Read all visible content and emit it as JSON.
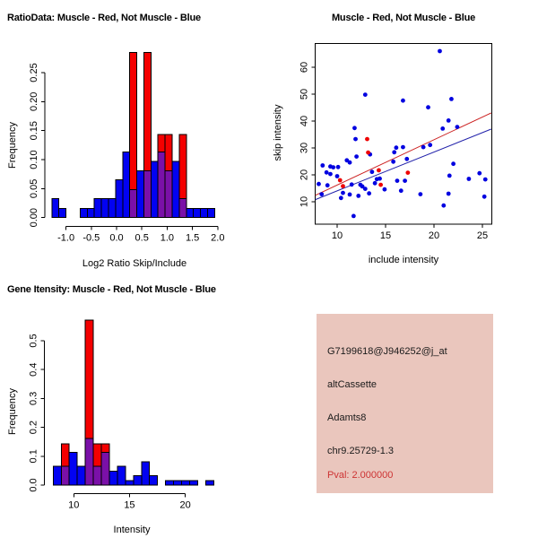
{
  "chart_data": [
    {
      "id": "ratio_histogram",
      "type": "bar",
      "title": "RatioData: Muscle - Red, Not Muscle - Blue",
      "xlabel": "Log2 Ratio Skip/Include",
      "ylabel": "Frequency",
      "x_ticks": [
        -1.0,
        -0.5,
        0.0,
        0.5,
        1.0,
        1.5,
        2.0
      ],
      "x_tick_labels": [
        "-1.0",
        "-0.5",
        "0.0",
        "0.5",
        "1.0",
        "1.5",
        "2.0"
      ],
      "y_ticks": [
        0.0,
        0.05,
        0.1,
        0.15,
        0.2,
        0.25
      ],
      "y_tick_labels": [
        "0.00",
        "0.05",
        "0.10",
        "0.15",
        "0.20",
        "0.25"
      ],
      "xlim": [
        -1.35,
        2.05
      ],
      "ylim": [
        0,
        0.285
      ],
      "bin_width": 0.14,
      "legend_note": "red = Muscle, blue = Not Muscle, purple = overlap",
      "bins": [
        {
          "x0": -1.28,
          "blue": 0.033,
          "red": 0
        },
        {
          "x0": -1.14,
          "blue": 0.016,
          "red": 0
        },
        {
          "x0": -1.0,
          "blue": 0,
          "red": 0
        },
        {
          "x0": -0.86,
          "blue": 0,
          "red": 0
        },
        {
          "x0": -0.72,
          "blue": 0.016,
          "red": 0
        },
        {
          "x0": -0.58,
          "blue": 0.016,
          "red": 0
        },
        {
          "x0": -0.44,
          "blue": 0.033,
          "red": 0
        },
        {
          "x0": -0.3,
          "blue": 0.033,
          "red": 0
        },
        {
          "x0": -0.16,
          "blue": 0.033,
          "red": 0
        },
        {
          "x0": -0.02,
          "blue": 0.065,
          "red": 0
        },
        {
          "x0": 0.12,
          "blue": 0.113,
          "red": 0
        },
        {
          "x0": 0.26,
          "blue": 0.048,
          "red": 0.285
        },
        {
          "x0": 0.4,
          "blue": 0.081,
          "red": 0
        },
        {
          "x0": 0.54,
          "blue": 0.081,
          "red": 0.285
        },
        {
          "x0": 0.68,
          "blue": 0.097,
          "red": 0
        },
        {
          "x0": 0.82,
          "blue": 0.113,
          "red": 0.143
        },
        {
          "x0": 0.96,
          "blue": 0.081,
          "red": 0.143
        },
        {
          "x0": 1.1,
          "blue": 0.097,
          "red": 0
        },
        {
          "x0": 1.24,
          "blue": 0.033,
          "red": 0.143
        },
        {
          "x0": 1.38,
          "blue": 0.016,
          "red": 0
        },
        {
          "x0": 1.52,
          "blue": 0.016,
          "red": 0
        },
        {
          "x0": 1.66,
          "blue": 0.016,
          "red": 0
        },
        {
          "x0": 1.8,
          "blue": 0.016,
          "red": 0
        }
      ]
    },
    {
      "id": "intensity_scatter",
      "type": "scatter",
      "title": "Muscle - Red, Not Muscle - Blue",
      "xlabel": "include intensity",
      "ylabel": "skip intensity",
      "x_ticks": [
        10,
        15,
        20,
        25
      ],
      "x_tick_labels": [
        "10",
        "15",
        "20",
        "25"
      ],
      "y_ticks": [
        10,
        20,
        30,
        40,
        50,
        60
      ],
      "y_tick_labels": [
        "10",
        "20",
        "30",
        "40",
        "50",
        "60"
      ],
      "xlim": [
        7.75,
        25.9
      ],
      "ylim": [
        1.7,
        68.9
      ],
      "blue_points": [
        [
          8.1,
          16.6
        ],
        [
          8.5,
          23.5
        ],
        [
          8.4,
          12.8
        ],
        [
          9.0,
          16.1
        ],
        [
          9.3,
          23.1
        ],
        [
          9.6,
          22.8
        ],
        [
          8.9,
          20.9
        ],
        [
          9.3,
          20.3
        ],
        [
          10.0,
          19.5
        ],
        [
          10.1,
          22.9
        ],
        [
          10.4,
          11.4
        ],
        [
          10.6,
          13.3
        ],
        [
          11.0,
          25.4
        ],
        [
          11.3,
          24.6
        ],
        [
          11.3,
          12.7
        ],
        [
          11.5,
          16.4
        ],
        [
          11.7,
          4.7
        ],
        [
          11.8,
          37.4
        ],
        [
          11.9,
          33.3
        ],
        [
          12.0,
          26.8
        ],
        [
          12.2,
          12.2
        ],
        [
          12.4,
          16.3
        ],
        [
          12.6,
          15.7
        ],
        [
          12.9,
          14.8
        ],
        [
          12.9,
          49.8
        ],
        [
          13.4,
          27.6
        ],
        [
          13.3,
          13.1
        ],
        [
          13.6,
          21.1
        ],
        [
          13.9,
          16.9
        ],
        [
          14.1,
          18.4
        ],
        [
          14.4,
          18.6
        ],
        [
          14.9,
          14.6
        ],
        [
          15.8,
          24.9
        ],
        [
          15.9,
          28.4
        ],
        [
          16.1,
          30.1
        ],
        [
          16.8,
          30.3
        ],
        [
          16.2,
          17.8
        ],
        [
          16.6,
          14.1
        ],
        [
          16.8,
          47.6
        ],
        [
          17.0,
          17.8
        ],
        [
          17.2,
          25.9
        ],
        [
          18.6,
          12.8
        ],
        [
          18.9,
          30.3
        ],
        [
          19.4,
          45.1
        ],
        [
          19.6,
          31.1
        ],
        [
          20.6,
          66.0
        ],
        [
          20.9,
          37.2
        ],
        [
          21.0,
          8.6
        ],
        [
          21.5,
          13.0
        ],
        [
          21.5,
          40.2
        ],
        [
          21.6,
          19.7
        ],
        [
          21.8,
          48.2
        ],
        [
          22.0,
          24.1
        ],
        [
          22.4,
          37.8
        ],
        [
          23.6,
          18.5
        ],
        [
          24.7,
          20.6
        ],
        [
          25.2,
          11.9
        ],
        [
          25.3,
          18.3
        ]
      ],
      "red_points": [
        [
          10.3,
          18.0
        ],
        [
          10.6,
          15.8
        ],
        [
          13.1,
          33.3
        ],
        [
          13.2,
          28.3
        ],
        [
          14.3,
          21.7
        ],
        [
          14.5,
          16.3
        ],
        [
          17.3,
          20.8
        ]
      ],
      "red_line": {
        "x1": 7.75,
        "y1": 12.4,
        "x2": 25.9,
        "y2": 43.0
      },
      "blue_line": {
        "x1": 7.75,
        "y1": 10.8,
        "x2": 25.9,
        "y2": 37.0
      }
    },
    {
      "id": "gene_intensity_histogram",
      "type": "bar",
      "title": "Gene Itensity: Muscle - Red, Not Muscle - Blue",
      "xlabel": "Intensity",
      "ylabel": "Frequency",
      "x_ticks": [
        10,
        15,
        20
      ],
      "x_tick_labels": [
        "10",
        "15",
        "20"
      ],
      "y_ticks": [
        0.0,
        0.1,
        0.2,
        0.3,
        0.4,
        0.5
      ],
      "y_tick_labels": [
        "0.0",
        "0.1",
        "0.2",
        "0.3",
        "0.4",
        "0.5"
      ],
      "xlim": [
        7.9,
        22.8
      ],
      "ylim": [
        0,
        0.575
      ],
      "bin_width": 0.72,
      "legend_note": "red = Muscle, blue = Not Muscle, purple = overlap",
      "bins": [
        {
          "x0": 8.15,
          "blue": 0.065,
          "red": 0
        },
        {
          "x0": 8.87,
          "blue": 0.065,
          "red": 0.143
        },
        {
          "x0": 9.59,
          "blue": 0.113,
          "red": 0
        },
        {
          "x0": 10.31,
          "blue": 0.065,
          "red": 0
        },
        {
          "x0": 11.03,
          "blue": 0.161,
          "red": 0.571
        },
        {
          "x0": 11.75,
          "blue": 0.065,
          "red": 0.143
        },
        {
          "x0": 12.47,
          "blue": 0.113,
          "red": 0.143
        },
        {
          "x0": 13.19,
          "blue": 0.048,
          "red": 0
        },
        {
          "x0": 13.91,
          "blue": 0.065,
          "red": 0
        },
        {
          "x0": 14.63,
          "blue": 0.016,
          "red": 0
        },
        {
          "x0": 15.35,
          "blue": 0.032,
          "red": 0
        },
        {
          "x0": 16.07,
          "blue": 0.081,
          "red": 0
        },
        {
          "x0": 16.79,
          "blue": 0.032,
          "red": 0
        },
        {
          "x0": 17.51,
          "blue": 0,
          "red": 0
        },
        {
          "x0": 18.23,
          "blue": 0.016,
          "red": 0
        },
        {
          "x0": 18.95,
          "blue": 0.016,
          "red": 0
        },
        {
          "x0": 19.67,
          "blue": 0.016,
          "red": 0
        },
        {
          "x0": 20.39,
          "blue": 0.016,
          "red": 0
        },
        {
          "x0": 21.11,
          "blue": 0,
          "red": 0
        },
        {
          "x0": 21.83,
          "blue": 0.016,
          "red": 0
        }
      ]
    }
  ],
  "info_panel": {
    "background_color": "#EAC6BD",
    "lines": [
      {
        "text": "G7199618@J946252@j_at",
        "color": "#1A1A1A"
      },
      {
        "text": "altCassette",
        "color": "#1A1A1A"
      },
      {
        "text": "Adamts8",
        "color": "#1A1A1A"
      },
      {
        "text": "chr9.25729-1.3",
        "color": "#1A1A1A"
      },
      {
        "text": "Pval: 2.000000",
        "color": "#CD3333"
      }
    ]
  },
  "colors": {
    "hist_blue": "#0202F2",
    "hist_red": "#F40000",
    "hist_overlap": "#7A10A8",
    "point_blue": "#0000E0",
    "point_red": "#EE0000",
    "line_red": "#CC2222",
    "line_blue": "#2222AA",
    "axis": "#000000"
  }
}
